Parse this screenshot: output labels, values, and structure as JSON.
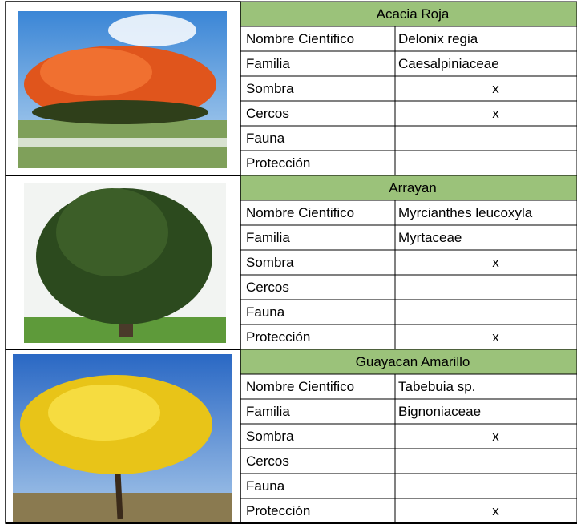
{
  "species": [
    {
      "name": "Acacia Roja",
      "rows": [
        {
          "label": "Nombre Cientifico",
          "value": "Delonix regia"
        },
        {
          "label": "Familia",
          "value": "Caesalpiniaceae"
        },
        {
          "label": "Sombra",
          "value": "x"
        },
        {
          "label": "Cercos",
          "value": "x"
        },
        {
          "label": "Fauna"
        },
        {
          "label": "Protección"
        }
      ]
    },
    {
      "name": "Arrayan",
      "rows": [
        {
          "label": "Nombre Cientifico",
          "value": "Myrcianthes leucoxyla"
        },
        {
          "label": "Familia",
          "value": "Myrtaceae"
        },
        {
          "label": "Sombra",
          "value": "x"
        },
        {
          "label": "Cercos"
        },
        {
          "label": "Fauna"
        },
        {
          "label": "Protección",
          "value": "x"
        }
      ]
    },
    {
      "name": "Guayacan Amarillo",
      "rows": [
        {
          "label": "Nombre Cientifico",
          "value": "Tabebuia sp."
        },
        {
          "label": "Familia",
          "value": "Bignoniaceae"
        },
        {
          "label": "Sombra",
          "value": "x"
        },
        {
          "label": "Cercos"
        },
        {
          "label": "Fauna"
        },
        {
          "label": "Protección",
          "value": "x"
        }
      ]
    }
  ]
}
